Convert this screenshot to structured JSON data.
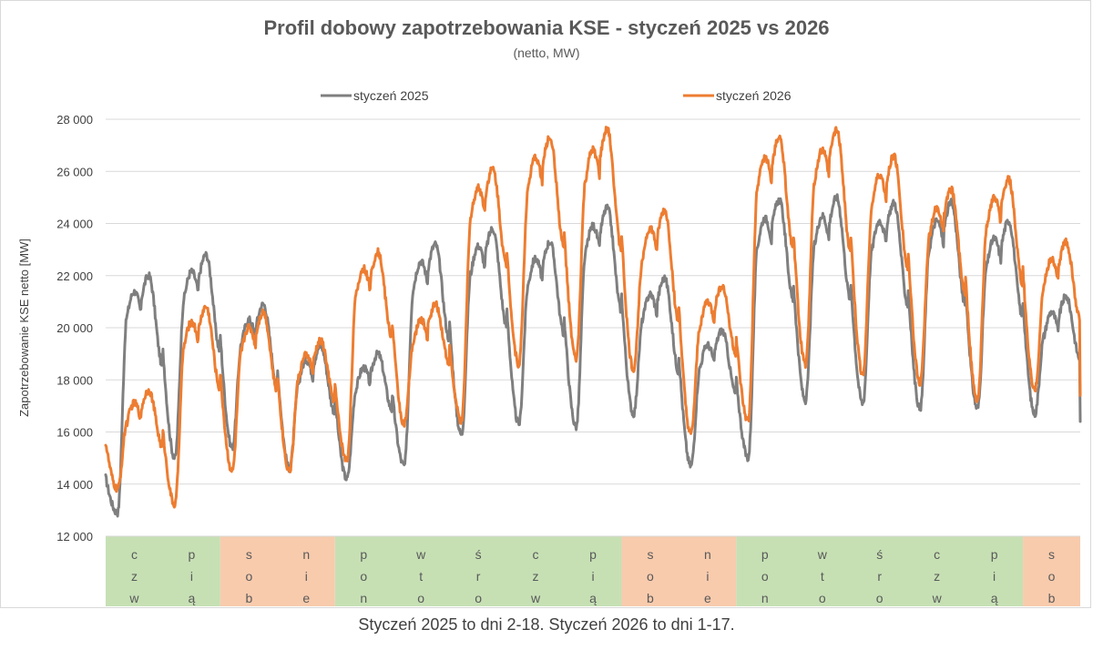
{
  "chart_data": {
    "type": "line",
    "title": "Profil dobowy zapotrzebowania KSE -  styczeń 2025 vs 2026",
    "subtitle": "(netto, MW)",
    "ylabel": "Zapotrzebowanie KSE netto [MW]",
    "ylim": [
      12000,
      28000
    ],
    "yticks": [
      12000,
      14000,
      16000,
      18000,
      20000,
      22000,
      24000,
      26000,
      28000
    ],
    "ytick_labels": [
      "12 000",
      "14 000",
      "16 000",
      "18 000",
      "20 000",
      "22 000",
      "24 000",
      "26 000",
      "28 000"
    ],
    "grid": true,
    "legend_position": "top",
    "series": [
      {
        "name": "styczeń 2025",
        "color": "#7f7f7f",
        "days": [
          {
            "night": 12900,
            "peak": 22000
          },
          {
            "night": 15000,
            "peak": 22800
          },
          {
            "night": 15400,
            "peak": 20900
          },
          {
            "night": 14600,
            "peak": 19300
          },
          {
            "night": 14200,
            "peak": 19000
          },
          {
            "night": 14700,
            "peak": 23200
          },
          {
            "night": 15900,
            "peak": 23800
          },
          {
            "night": 16300,
            "peak": 23300
          },
          {
            "night": 16200,
            "peak": 24600
          },
          {
            "night": 16700,
            "peak": 21900
          },
          {
            "night": 14700,
            "peak": 19900
          },
          {
            "night": 15000,
            "peak": 24900
          },
          {
            "night": 17200,
            "peak": 25000
          },
          {
            "night": 17100,
            "peak": 24800
          },
          {
            "night": 16900,
            "peak": 24800
          },
          {
            "night": 16900,
            "peak": 24100
          },
          {
            "night": 16700,
            "peak": 21200
          }
        ],
        "end": 16400
      },
      {
        "name": "styczeń 2026",
        "color": "#ed7d31",
        "days": [
          {
            "night": 13800,
            "peak": 17600
          },
          {
            "night": 13200,
            "peak": 20800
          },
          {
            "night": 14500,
            "peak": 20600
          },
          {
            "night": 14500,
            "peak": 19500
          },
          {
            "night": 14900,
            "peak": 22900
          },
          {
            "night": 16300,
            "peak": 20900
          },
          {
            "night": 16400,
            "peak": 26100
          },
          {
            "night": 18600,
            "peak": 27300
          },
          {
            "night": 18800,
            "peak": 27600
          },
          {
            "night": 18400,
            "peak": 24500
          },
          {
            "night": 15900,
            "peak": 21600
          },
          {
            "night": 16400,
            "peak": 27300
          },
          {
            "night": 18600,
            "peak": 27600
          },
          {
            "night": 18200,
            "peak": 26600
          },
          {
            "night": 17900,
            "peak": 25300
          },
          {
            "night": 17200,
            "peak": 25700
          },
          {
            "night": 17600,
            "peak": 23300
          }
        ],
        "start": 15600,
        "end": 17400
      }
    ],
    "day_bands": [
      {
        "label": [
          "c",
          "z",
          "w"
        ],
        "type": "workday"
      },
      {
        "label": [
          "p",
          "i",
          "ą"
        ],
        "type": "workday"
      },
      {
        "label": [
          "s",
          "o",
          "b"
        ],
        "type": "weekend"
      },
      {
        "label": [
          "n",
          "i",
          "e"
        ],
        "type": "weekend"
      },
      {
        "label": [
          "p",
          "o",
          "n"
        ],
        "type": "workday"
      },
      {
        "label": [
          "w",
          "t",
          "o"
        ],
        "type": "workday"
      },
      {
        "label": [
          "ś",
          "r",
          "o"
        ],
        "type": "workday"
      },
      {
        "label": [
          "c",
          "z",
          "w"
        ],
        "type": "workday"
      },
      {
        "label": [
          "p",
          "i",
          "ą"
        ],
        "type": "workday"
      },
      {
        "label": [
          "s",
          "o",
          "b"
        ],
        "type": "weekend"
      },
      {
        "label": [
          "n",
          "i",
          "e"
        ],
        "type": "weekend"
      },
      {
        "label": [
          "p",
          "o",
          "n"
        ],
        "type": "workday"
      },
      {
        "label": [
          "w",
          "t",
          "o"
        ],
        "type": "workday"
      },
      {
        "label": [
          "ś",
          "r",
          "o"
        ],
        "type": "workday"
      },
      {
        "label": [
          "c",
          "z",
          "w"
        ],
        "type": "workday"
      },
      {
        "label": [
          "p",
          "i",
          "ą"
        ],
        "type": "workday"
      },
      {
        "label": [
          "s",
          "o",
          "b"
        ],
        "type": "weekend"
      }
    ],
    "band_colors": {
      "workday": "#c6e0b4",
      "weekend": "#f8cbad"
    }
  },
  "footnote": "Styczeń 2025 to dni 2-18.   Styczeń 2026 to dni 1-17."
}
